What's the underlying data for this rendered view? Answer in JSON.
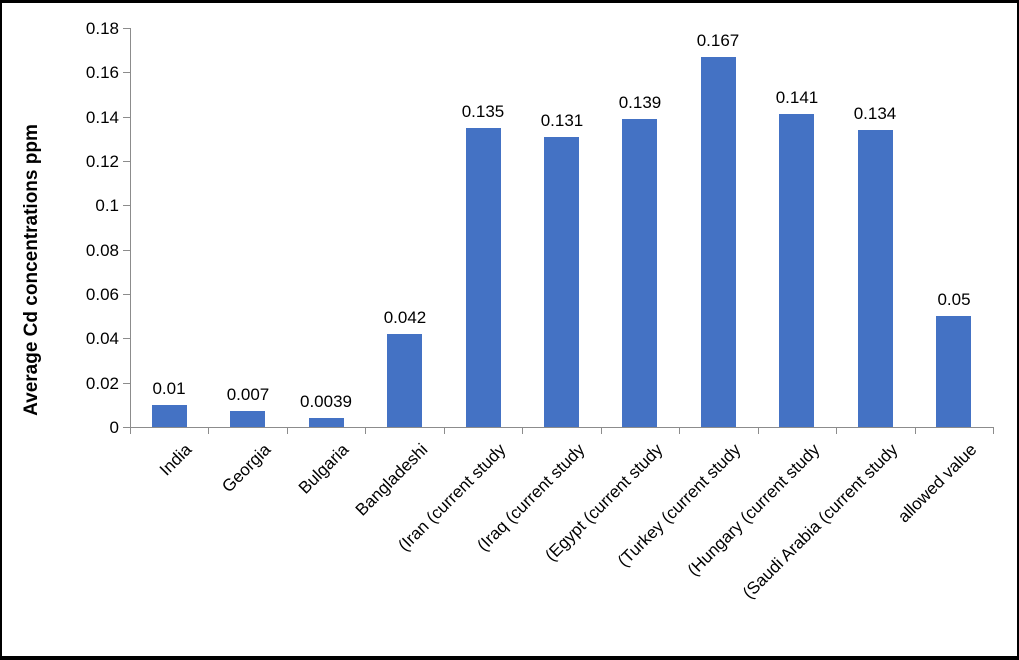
{
  "chart_data": {
    "type": "bar",
    "title": "",
    "xlabel": "",
    "ylabel": "Average Cd concentrations ppm",
    "categories": [
      "India",
      "Georgia",
      "Bulgaria",
      "Bangladeshi",
      "(Iran (current study",
      "(Iraq (current study",
      "(Egypt (current study",
      "(Turkey (current study",
      "(Hungary (current study",
      "(Saudi Arabia (current study",
      "allowed value"
    ],
    "values": [
      0.01,
      0.007,
      0.0039,
      0.042,
      0.135,
      0.131,
      0.139,
      0.167,
      0.141,
      0.134,
      0.05
    ],
    "data_labels": [
      "0.01",
      "0.007",
      "0.0039",
      "0.042",
      "0.135",
      "0.131",
      "0.139",
      "0.167",
      "0.141",
      "0.134",
      "0.05"
    ],
    "ylim": [
      0,
      0.18
    ],
    "ytick_values": [
      0,
      0.02,
      0.04,
      0.06,
      0.08,
      0.1,
      0.12,
      0.14,
      0.16,
      0.18
    ],
    "ytick_labels": [
      "0",
      "0.02",
      "0.04",
      "0.06",
      "0.08",
      "0.1",
      "0.12",
      "0.14",
      "0.16",
      "0.18"
    ],
    "grid": false,
    "legend": "none",
    "bar_color": "#4472C4",
    "axis_color": "#8C8C8C",
    "label_color": "#000000",
    "background": "#FFFFFF",
    "frame_color": "#000000"
  }
}
